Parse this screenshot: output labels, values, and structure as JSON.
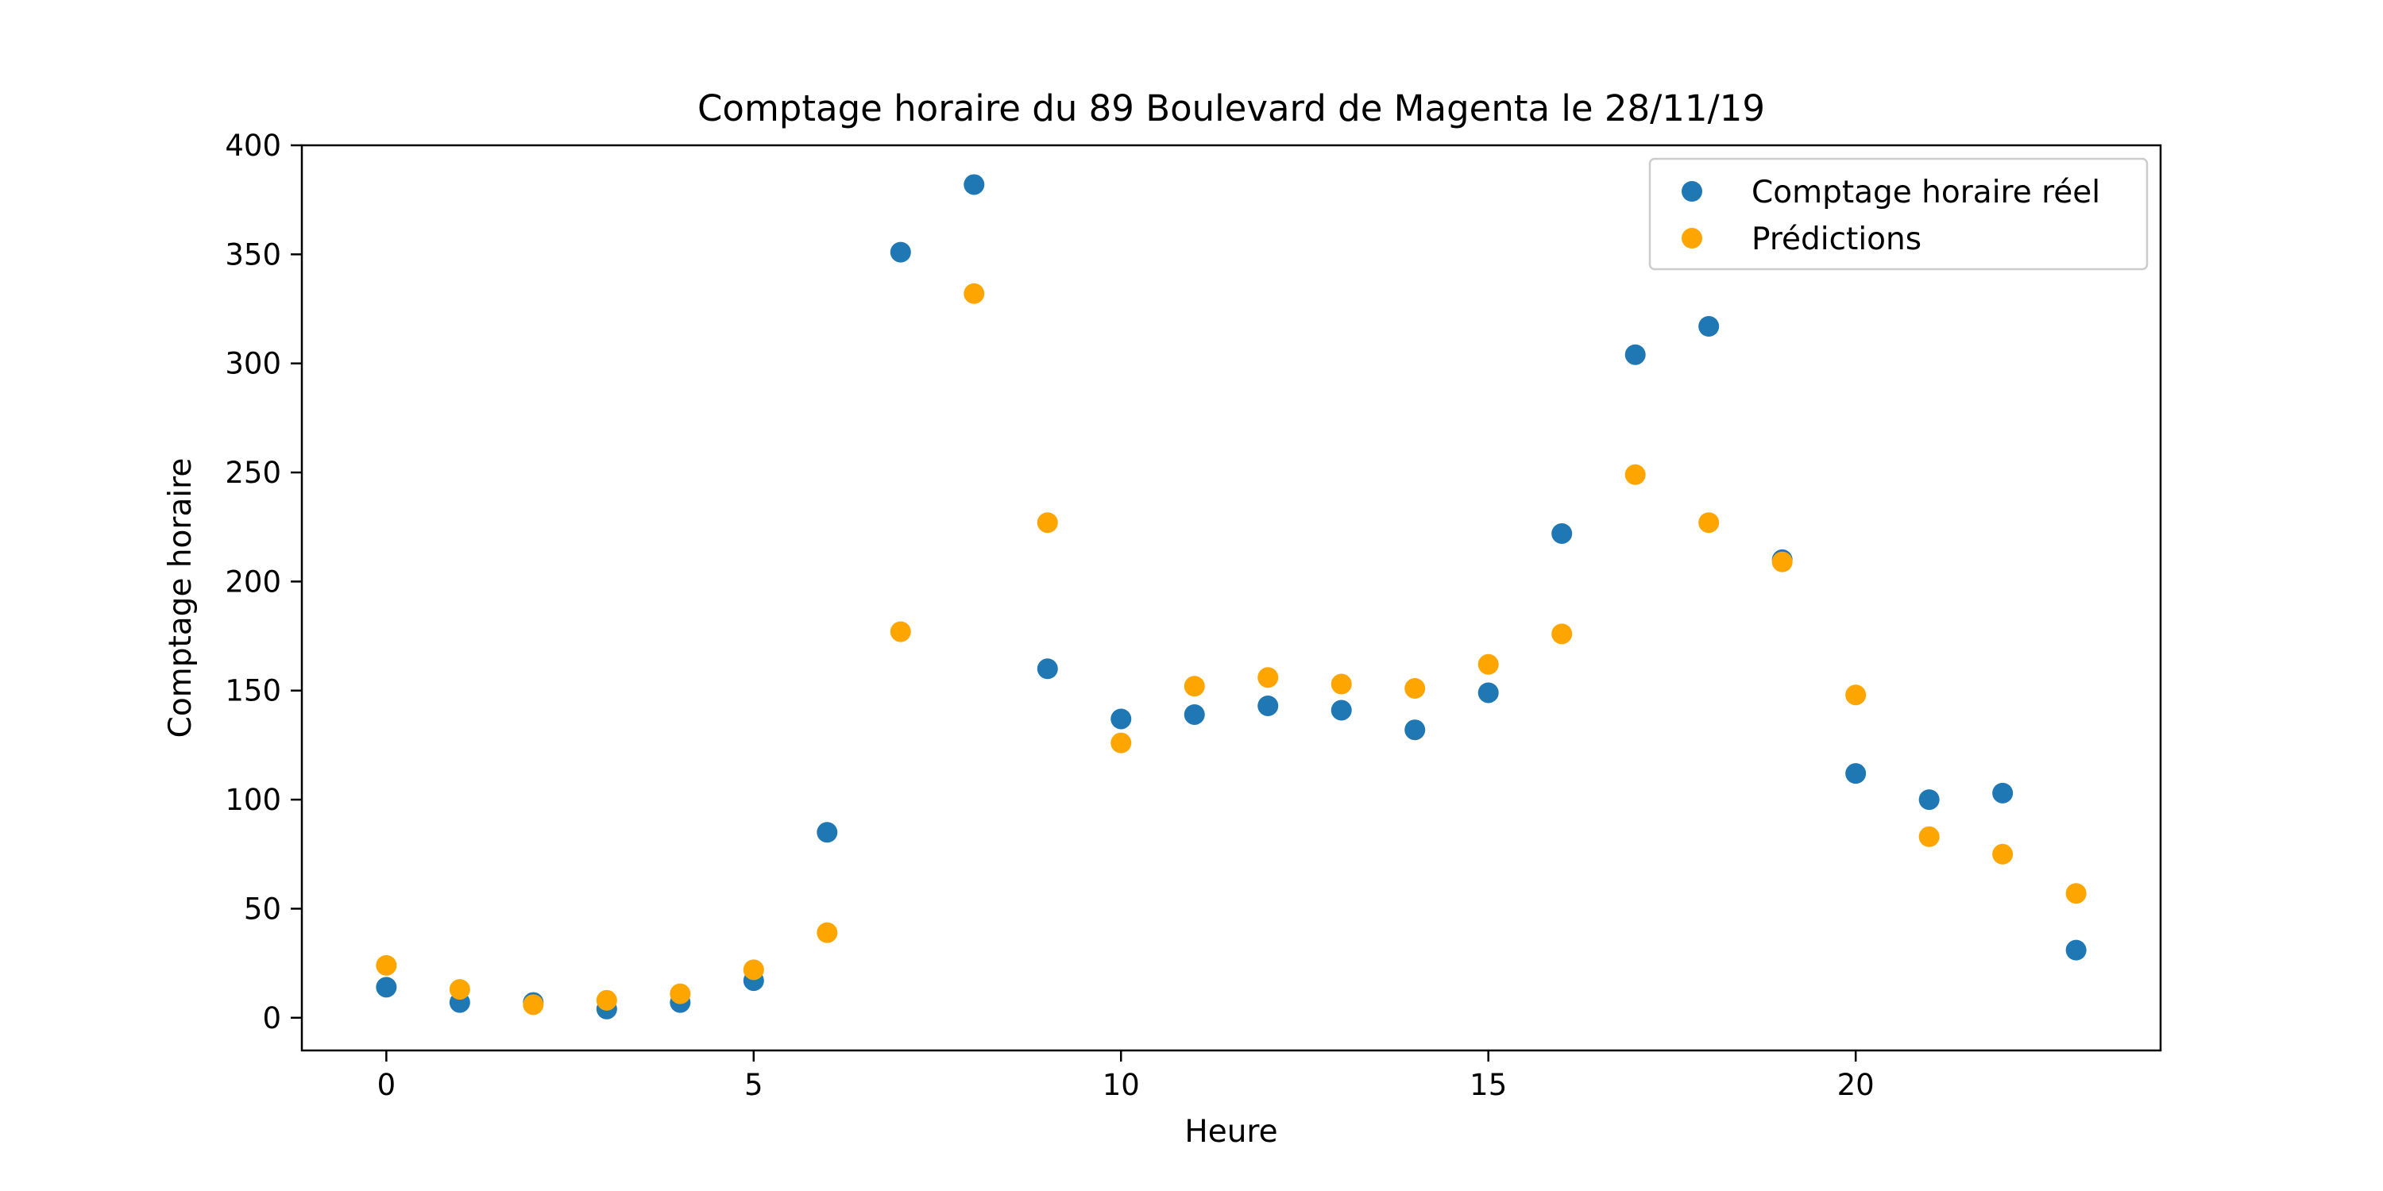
{
  "chart_data": {
    "type": "scatter",
    "title": "Comptage horaire du 89 Boulevard de Magenta le 28/11/19",
    "xlabel": "Heure",
    "ylabel": "Comptage horaire",
    "xlim": [
      -1.15,
      24.15
    ],
    "ylim": [
      -15,
      400
    ],
    "xticks": [
      0,
      5,
      10,
      15,
      20
    ],
    "yticks": [
      0,
      50,
      100,
      150,
      200,
      250,
      300,
      350,
      400
    ],
    "grid": false,
    "legend_position": "top-right",
    "x": [
      0,
      1,
      2,
      3,
      4,
      5,
      6,
      7,
      8,
      9,
      10,
      11,
      12,
      13,
      14,
      15,
      16,
      17,
      18,
      19,
      20,
      21,
      22,
      23
    ],
    "series": [
      {
        "name": "Comptage horaire réel",
        "color": "#1f77b4",
        "values": [
          14,
          7,
          7,
          4,
          7,
          17,
          85,
          351,
          382,
          160,
          137,
          139,
          143,
          141,
          132,
          149,
          222,
          304,
          317,
          210,
          112,
          100,
          103,
          31
        ]
      },
      {
        "name": "Prédictions",
        "color": "#ffa500",
        "values": [
          24,
          13,
          6,
          8,
          11,
          22,
          39,
          177,
          332,
          227,
          126,
          152,
          156,
          153,
          151,
          162,
          176,
          249,
          227,
          209,
          148,
          83,
          75,
          57
        ]
      }
    ]
  }
}
